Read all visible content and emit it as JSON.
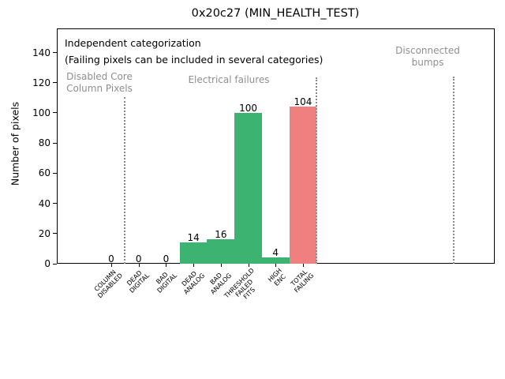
{
  "chart_data": {
    "type": "bar",
    "title": "0x20c27 (MIN_HEALTH_TEST)",
    "ylabel": "Number of pixels",
    "xlabel": "",
    "categories": [
      "COLUMN\nDISABLED",
      "DEAD\nDIGITAL",
      "BAD\nDIGITAL",
      "DEAD\nANALOG",
      "BAD\nANALOG",
      "THRESHOLD\nFAILED\nFITS",
      "HIGH\nENC",
      "TOTAL\nFAILING"
    ],
    "values": [
      0,
      0,
      0,
      14,
      16,
      100,
      4,
      104
    ],
    "bar_colors": [
      "#3cb371",
      "#3cb371",
      "#3cb371",
      "#3cb371",
      "#3cb371",
      "#3cb371",
      "#3cb371",
      "#f08080"
    ],
    "yticks": [
      0,
      20,
      40,
      60,
      80,
      100,
      120,
      140
    ],
    "ylim": [
      0,
      156
    ],
    "xlim": [
      -2,
      14
    ],
    "grid": false,
    "legend": null,
    "annotation": {
      "line1": "Independent categorization",
      "line2": "(Failing pixels can be included in several categories)"
    },
    "section_labels": [
      {
        "text": "Disabled Core\nColumn Pixels",
        "color": "#8e8e8e"
      },
      {
        "text": "Electrical failures",
        "color": "#8e8e8e"
      },
      {
        "text": "Disconnected\nbumps",
        "color": "#8e8e8e"
      }
    ],
    "separators_x": [
      0.5,
      7.5,
      12.5
    ],
    "accent_green": "#3cb371",
    "accent_red": "#f08080",
    "separator_color": "#8a8a8a"
  }
}
